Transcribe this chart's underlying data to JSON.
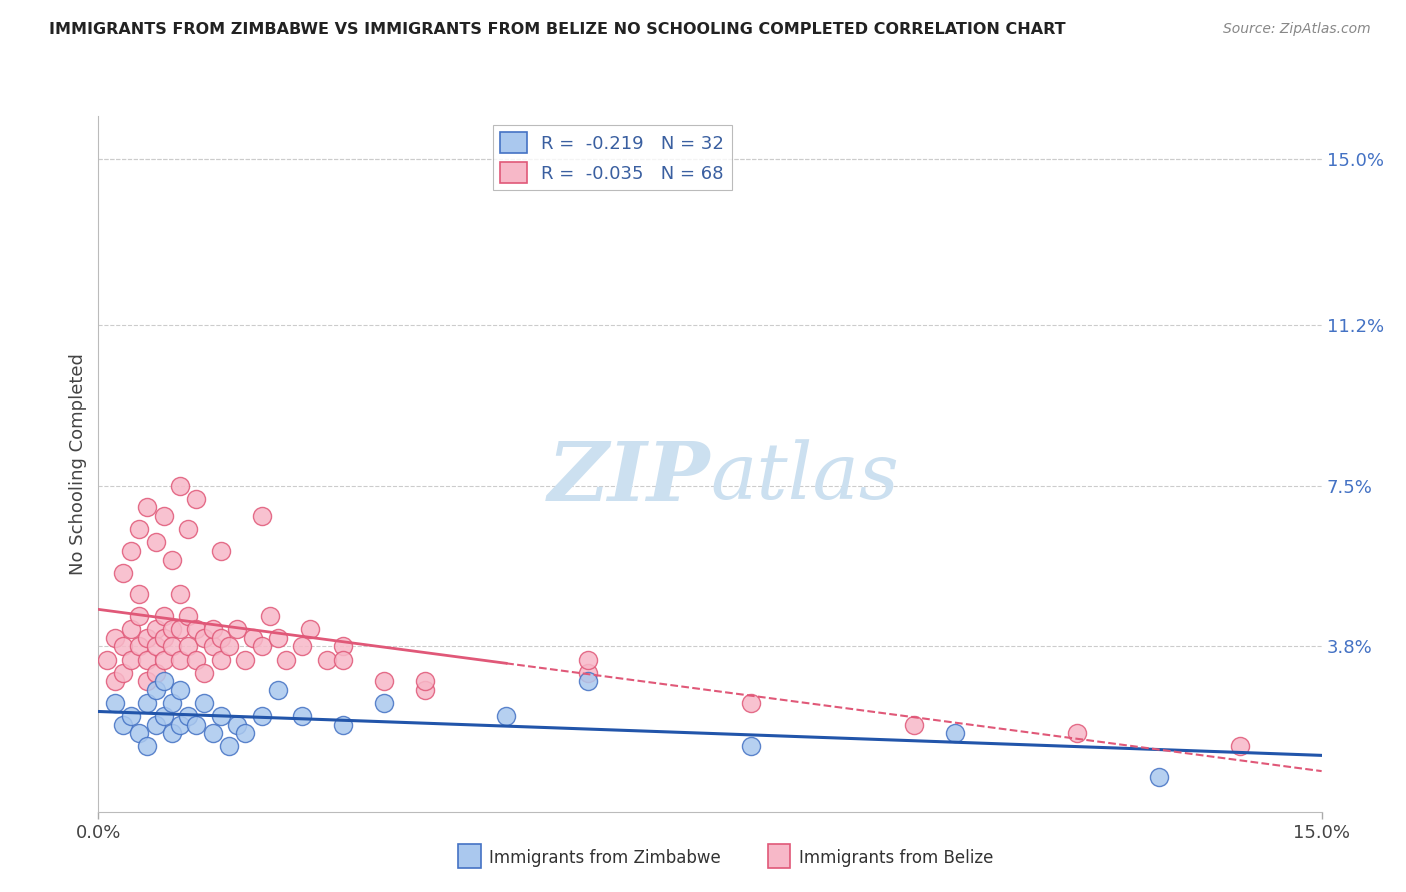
{
  "title": "IMMIGRANTS FROM ZIMBABWE VS IMMIGRANTS FROM BELIZE NO SCHOOLING COMPLETED CORRELATION CHART",
  "source": "Source: ZipAtlas.com",
  "ylabel": "No Schooling Completed",
  "xlim": [
    0.0,
    0.15
  ],
  "ylim": [
    0.0,
    0.16
  ],
  "right_yticks": [
    0.038,
    0.075,
    0.112,
    0.15
  ],
  "right_yticklabels": [
    "3.8%",
    "7.5%",
    "11.2%",
    "15.0%"
  ],
  "xticks": [
    0.0,
    0.15
  ],
  "xticklabels": [
    "0.0%",
    "15.0%"
  ],
  "legend_r1": "R =  -0.219   N = 32",
  "legend_r2": "R =  -0.035   N = 68",
  "color_zimbabwe_fill": "#aac8ee",
  "color_zimbabwe_edge": "#4472c4",
  "color_belize_fill": "#f7b8c8",
  "color_belize_edge": "#e05878",
  "color_line_zimbabwe": "#2255aa",
  "color_line_belize": "#e05878",
  "watermark_color": "#cce0f0",
  "background_color": "#ffffff",
  "grid_color": "#cccccc",
  "right_axis_color": "#4472c4",
  "title_color": "#222222",
  "source_color": "#888888",
  "label_color": "#444444",
  "legend_text_color": "#3a5fa0",
  "bottom_label_color": "#333333",
  "zimbabwe_x": [
    0.002,
    0.003,
    0.004,
    0.005,
    0.006,
    0.006,
    0.007,
    0.007,
    0.008,
    0.008,
    0.009,
    0.009,
    0.01,
    0.01,
    0.011,
    0.012,
    0.013,
    0.014,
    0.015,
    0.016,
    0.017,
    0.018,
    0.02,
    0.022,
    0.025,
    0.03,
    0.035,
    0.05,
    0.06,
    0.08,
    0.105,
    0.13
  ],
  "zimbabwe_y": [
    0.025,
    0.02,
    0.022,
    0.018,
    0.015,
    0.025,
    0.02,
    0.028,
    0.022,
    0.03,
    0.018,
    0.025,
    0.02,
    0.028,
    0.022,
    0.02,
    0.025,
    0.018,
    0.022,
    0.015,
    0.02,
    0.018,
    0.022,
    0.028,
    0.022,
    0.02,
    0.025,
    0.022,
    0.03,
    0.015,
    0.018,
    0.008
  ],
  "belize_x": [
    0.001,
    0.002,
    0.002,
    0.003,
    0.003,
    0.004,
    0.004,
    0.005,
    0.005,
    0.005,
    0.006,
    0.006,
    0.006,
    0.007,
    0.007,
    0.007,
    0.008,
    0.008,
    0.008,
    0.009,
    0.009,
    0.01,
    0.01,
    0.01,
    0.011,
    0.011,
    0.012,
    0.012,
    0.013,
    0.013,
    0.014,
    0.014,
    0.015,
    0.015,
    0.016,
    0.017,
    0.018,
    0.019,
    0.02,
    0.021,
    0.022,
    0.023,
    0.025,
    0.026,
    0.028,
    0.03,
    0.035,
    0.04,
    0.003,
    0.004,
    0.005,
    0.006,
    0.007,
    0.008,
    0.009,
    0.01,
    0.011,
    0.012,
    0.015,
    0.02,
    0.03,
    0.04,
    0.06,
    0.08,
    0.06,
    0.1,
    0.12,
    0.14
  ],
  "belize_y": [
    0.035,
    0.04,
    0.03,
    0.038,
    0.032,
    0.042,
    0.035,
    0.05,
    0.038,
    0.045,
    0.04,
    0.035,
    0.03,
    0.042,
    0.038,
    0.032,
    0.045,
    0.04,
    0.035,
    0.042,
    0.038,
    0.05,
    0.042,
    0.035,
    0.045,
    0.038,
    0.042,
    0.035,
    0.04,
    0.032,
    0.038,
    0.042,
    0.035,
    0.04,
    0.038,
    0.042,
    0.035,
    0.04,
    0.038,
    0.045,
    0.04,
    0.035,
    0.038,
    0.042,
    0.035,
    0.038,
    0.03,
    0.028,
    0.055,
    0.06,
    0.065,
    0.07,
    0.062,
    0.068,
    0.058,
    0.075,
    0.065,
    0.072,
    0.06,
    0.068,
    0.035,
    0.03,
    0.032,
    0.025,
    0.035,
    0.02,
    0.018,
    0.015
  ]
}
